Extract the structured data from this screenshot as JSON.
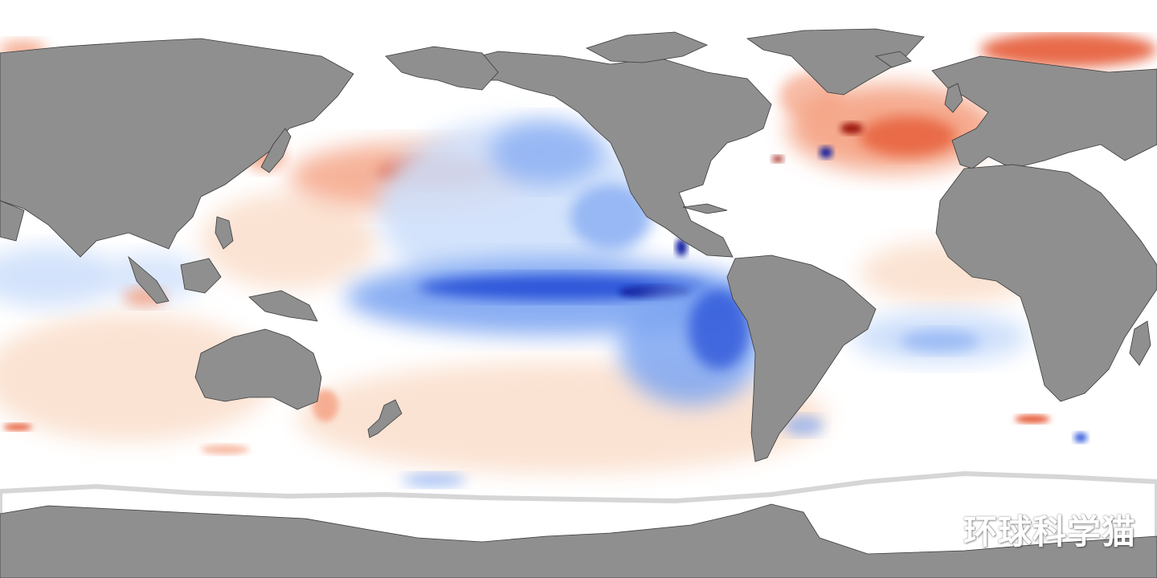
{
  "map": {
    "type": "sea-surface-temperature-anomaly",
    "projection": "equirectangular",
    "colors": {
      "ocean_neutral": "#ffffff",
      "land": "#8f8f8f",
      "sea_ice": "#ffffff",
      "ice_edge": "#d6d6d6",
      "coast": "#3a3a3a",
      "cool_light": "#cfe0fb",
      "cool": "#7ea6f2",
      "cool_strong": "#2f57d9",
      "cool_extreme": "#0b1f9e",
      "warm_light": "#fbe3d3",
      "warm": "#f4a081",
      "warm_strong": "#e4512b",
      "warm_extreme": "#9c1207"
    },
    "features": [
      {
        "name": "north-pacific-warm-anomaly",
        "sign": "warm",
        "strength": 0.75
      },
      {
        "name": "equatorial-pacific-cold-tongue",
        "sign": "cool",
        "strength": 1.0
      },
      {
        "name": "eastern-north-pacific-cool-anomaly",
        "sign": "cool",
        "strength": 0.55
      },
      {
        "name": "southeast-pacific-cool-anomaly",
        "sign": "cool",
        "strength": 0.8
      },
      {
        "name": "north-atlantic-warm-anomaly",
        "sign": "warm",
        "strength": 0.85
      },
      {
        "name": "barents-sea-warm-anomaly",
        "sign": "warm",
        "strength": 0.85
      },
      {
        "name": "gulf-stream-dipole",
        "sign": "mixed",
        "strength": 1.0
      },
      {
        "name": "south-atlantic-cool-anomaly",
        "sign": "cool",
        "strength": 0.45
      },
      {
        "name": "indian-ocean-cool-anomaly",
        "sign": "cool",
        "strength": 0.45
      },
      {
        "name": "south-pacific-warm-anomaly",
        "sign": "warm",
        "strength": 0.4
      }
    ]
  },
  "watermark": {
    "text": "环球科学猫"
  }
}
